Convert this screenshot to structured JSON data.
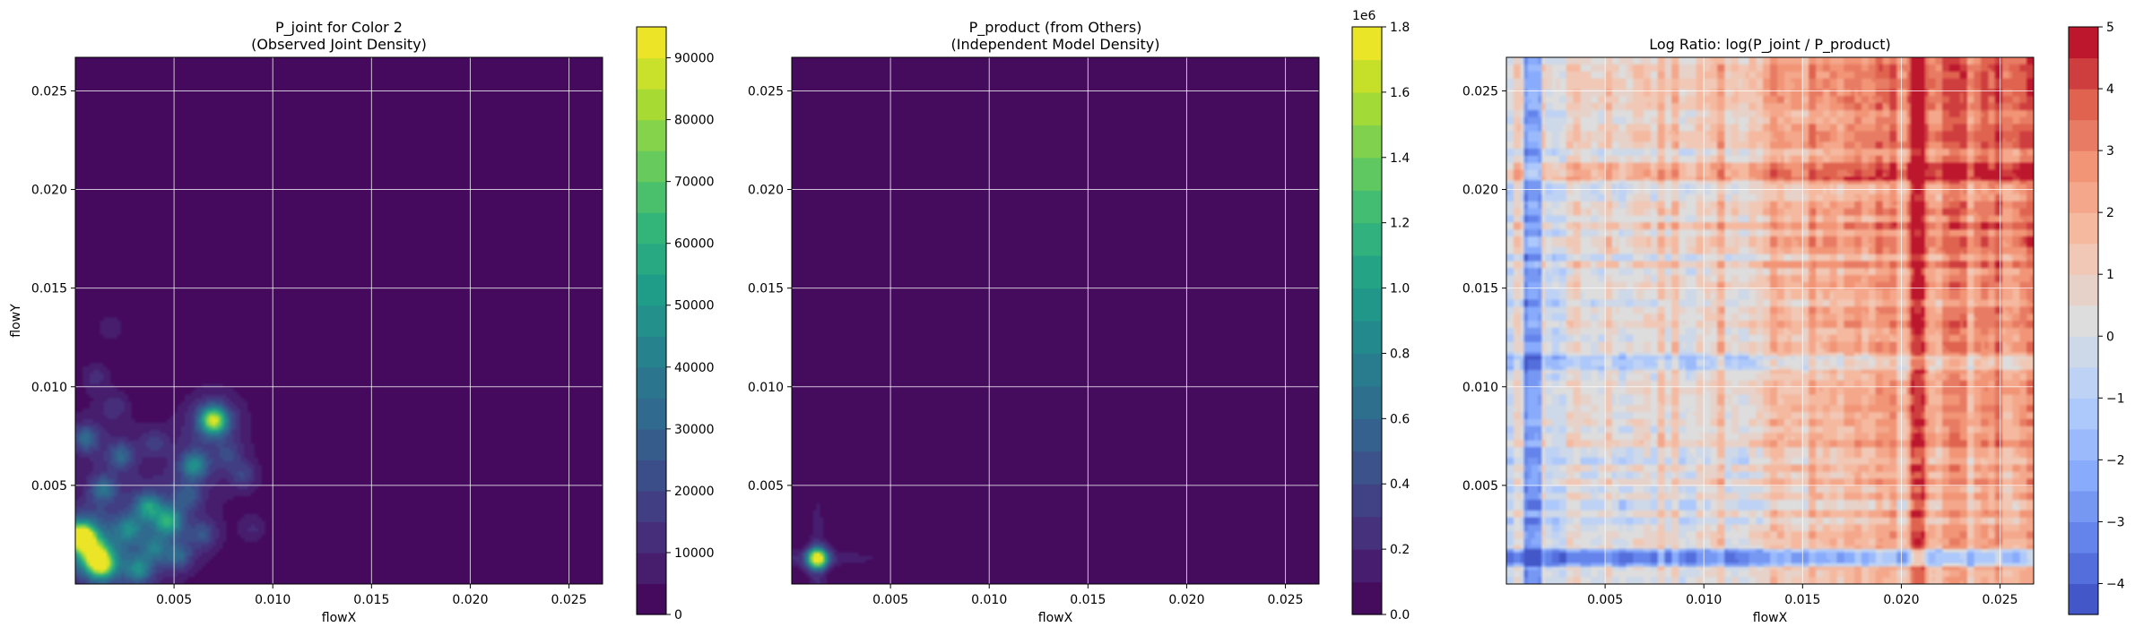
{
  "chart_data": [
    {
      "type": "heatmap",
      "title_line1": "P_joint for Color 2",
      "title_line2": "(Observed Joint Density)",
      "xlabel": "flowX",
      "ylabel": "flowY",
      "xlim": [
        0.0,
        0.0267
      ],
      "ylim": [
        0.0,
        0.0267
      ],
      "xticks": [
        "0.005",
        "0.010",
        "0.015",
        "0.020",
        "0.025"
      ],
      "yticks": [
        "0.005",
        "0.010",
        "0.015",
        "0.020",
        "0.025"
      ],
      "colormap": "viridis",
      "colorbar": {
        "min": 0,
        "max": 95000,
        "ticks": [
          "0",
          "10000",
          "20000",
          "30000",
          "40000",
          "50000",
          "60000",
          "70000",
          "80000",
          "90000"
        ],
        "tick_values": [
          0,
          10000,
          20000,
          30000,
          40000,
          50000,
          60000,
          70000,
          80000,
          90000
        ],
        "levels": 19,
        "offset": ""
      },
      "grid": true,
      "hotspots": [
        {
          "x": 0.0003,
          "y": 0.0024,
          "v": 92000
        },
        {
          "x": 0.0013,
          "y": 0.001,
          "v": 70000
        },
        {
          "x": 0.0009,
          "y": 0.0016,
          "v": 45000
        },
        {
          "x": 0.007,
          "y": 0.0083,
          "v": 72000
        },
        {
          "x": 0.006,
          "y": 0.006,
          "v": 35000
        },
        {
          "x": 0.0047,
          "y": 0.0032,
          "v": 40000
        },
        {
          "x": 0.0037,
          "y": 0.0039,
          "v": 35000
        },
        {
          "x": 0.0032,
          "y": 0.0007,
          "v": 30000
        },
        {
          "x": 0.0005,
          "y": 0.0074,
          "v": 25000
        },
        {
          "x": 0.0023,
          "y": 0.0065,
          "v": 22000
        },
        {
          "x": 0.0014,
          "y": 0.0048,
          "v": 25000
        },
        {
          "x": 0.0027,
          "y": 0.0028,
          "v": 25000
        },
        {
          "x": 0.004,
          "y": 0.0018,
          "v": 20000
        },
        {
          "x": 0.0052,
          "y": 0.0014,
          "v": 20000
        },
        {
          "x": 0.0065,
          "y": 0.0025,
          "v": 16000
        },
        {
          "x": 0.0085,
          "y": 0.0055,
          "v": 14000
        },
        {
          "x": 0.002,
          "y": 0.009,
          "v": 10000
        },
        {
          "x": 0.0057,
          "y": 0.0045,
          "v": 15000
        },
        {
          "x": 0.004,
          "y": 0.0072,
          "v": 12000
        },
        {
          "x": 0.001,
          "y": 0.0105,
          "v": 9000
        },
        {
          "x": 0.0018,
          "y": 0.013,
          "v": 7000
        },
        {
          "x": 0.009,
          "y": 0.0028,
          "v": 8000
        },
        {
          "x": 0.0078,
          "y": 0.0065,
          "v": 10000
        }
      ]
    },
    {
      "type": "heatmap",
      "title_line1": "P_product (from Others)",
      "title_line2": "(Independent Model Density)",
      "xlabel": "flowX",
      "ylabel": "",
      "xlim": [
        0.0,
        0.0267
      ],
      "ylim": [
        0.0,
        0.0267
      ],
      "xticks": [
        "0.005",
        "0.010",
        "0.015",
        "0.020",
        "0.025"
      ],
      "yticks": [
        "0.005",
        "0.010",
        "0.015",
        "0.020",
        "0.025"
      ],
      "colormap": "viridis",
      "colorbar": {
        "min": 0.0,
        "max": 1.8,
        "ticks": [
          "0.0",
          "0.2",
          "0.4",
          "0.6",
          "0.8",
          "1.0",
          "1.2",
          "1.4",
          "1.6",
          "1.8"
        ],
        "tick_values": [
          0.0,
          0.2,
          0.4,
          0.6,
          0.8,
          1.0,
          1.2,
          1.4,
          1.6,
          1.8
        ],
        "levels": 18,
        "offset": "1e6"
      },
      "grid": true,
      "peak": {
        "x": 0.0013,
        "y": 0.0013,
        "v": 1.7
      }
    },
    {
      "type": "heatmap",
      "title_line1": "Log Ratio: log(P_joint / P_product)",
      "title_line2": "",
      "xlabel": "flowX",
      "ylabel": "",
      "xlim": [
        0.0,
        0.0267
      ],
      "ylim": [
        0.0,
        0.0267
      ],
      "xticks": [
        "0.005",
        "0.010",
        "0.015",
        "0.020",
        "0.025"
      ],
      "yticks": [
        "0.005",
        "0.010",
        "0.015",
        "0.020",
        "0.025"
      ],
      "colormap": "coolwarm",
      "colorbar": {
        "min": -4.5,
        "max": 5.0,
        "ticks": [
          "−4",
          "−3",
          "−2",
          "−1",
          "0",
          "1",
          "2",
          "3",
          "4",
          "5"
        ],
        "tick_values": [
          -4,
          -3,
          -2,
          -1,
          0,
          1,
          2,
          3,
          4,
          5
        ],
        "levels": 19,
        "offset": ""
      },
      "grid": true
    }
  ]
}
